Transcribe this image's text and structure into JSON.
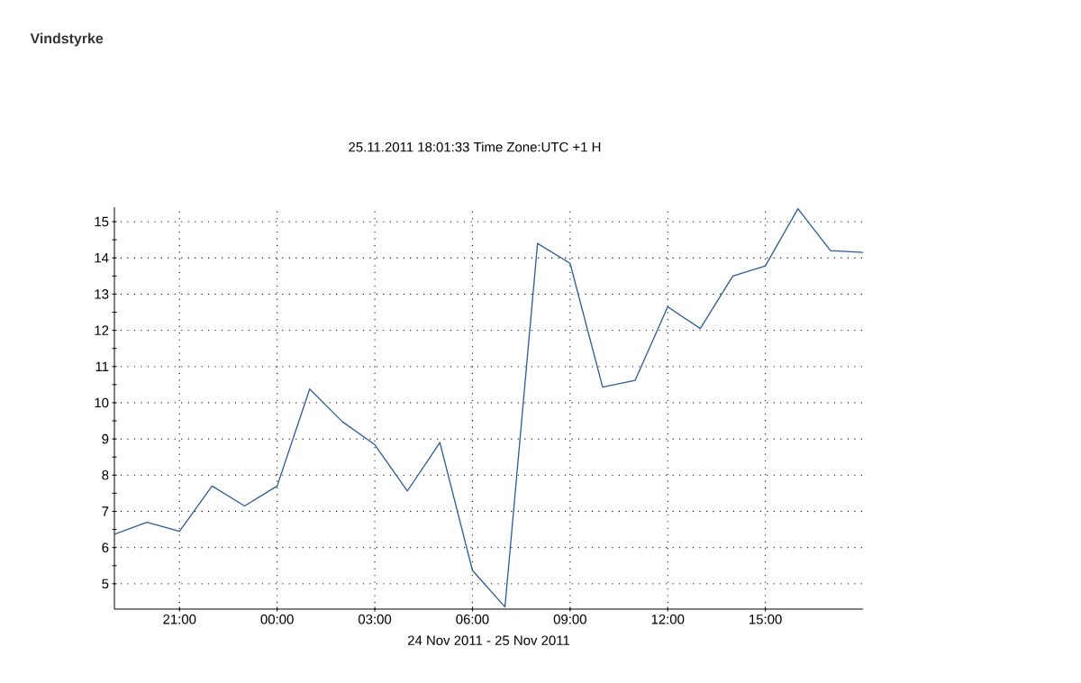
{
  "chart_data": {
    "type": "line",
    "title": "Vindstyrke",
    "subtitle": "25.11.2011 18:01:33 Time Zone:UTC +1 H",
    "xlabel": "24 Nov 2011 - 25 Nov 2011",
    "x": [
      "2011-11-24T19:00",
      "2011-11-24T20:00",
      "2011-11-24T21:00",
      "2011-11-24T22:00",
      "2011-11-24T23:00",
      "2011-11-25T00:00",
      "2011-11-25T01:00",
      "2011-11-25T02:00",
      "2011-11-25T03:00",
      "2011-11-25T04:00",
      "2011-11-25T05:00",
      "2011-11-25T06:00",
      "2011-11-25T07:00",
      "2011-11-25T08:00",
      "2011-11-25T09:00",
      "2011-11-25T10:00",
      "2011-11-25T11:00",
      "2011-11-25T12:00",
      "2011-11-25T13:00",
      "2011-11-25T14:00",
      "2011-11-25T15:00",
      "2011-11-25T16:00",
      "2011-11-25T17:00",
      "2011-11-25T18:00"
    ],
    "series": [
      {
        "color": "#2b5b95",
        "values": [
          6.37,
          6.7,
          6.45,
          7.7,
          7.15,
          7.7,
          10.38,
          9.48,
          8.84,
          7.56,
          8.9,
          5.37,
          4.36,
          14.4,
          13.85,
          10.43,
          10.62,
          12.65,
          12.05,
          13.5,
          13.78,
          15.36,
          14.2,
          14.15
        ]
      }
    ],
    "xlim": [
      "2011-11-24T19:00",
      "2011-11-25T18:00"
    ],
    "ylim": [
      4.3,
      15.4
    ],
    "xticks": [
      {
        "value": "2011-11-24T21:00",
        "label": "21:00"
      },
      {
        "value": "2011-11-25T00:00",
        "label": "00:00"
      },
      {
        "value": "2011-11-25T03:00",
        "label": "03:00"
      },
      {
        "value": "2011-11-25T06:00",
        "label": "06:00"
      },
      {
        "value": "2011-11-25T09:00",
        "label": "09:00"
      },
      {
        "value": "2011-11-25T12:00",
        "label": "12:00"
      },
      {
        "value": "2011-11-25T15:00",
        "label": "15:00"
      }
    ],
    "yticks": [
      5,
      6,
      7,
      8,
      9,
      10,
      11,
      12,
      13,
      14,
      15
    ],
    "grid": true,
    "marker": "none",
    "line_style": "solid"
  }
}
